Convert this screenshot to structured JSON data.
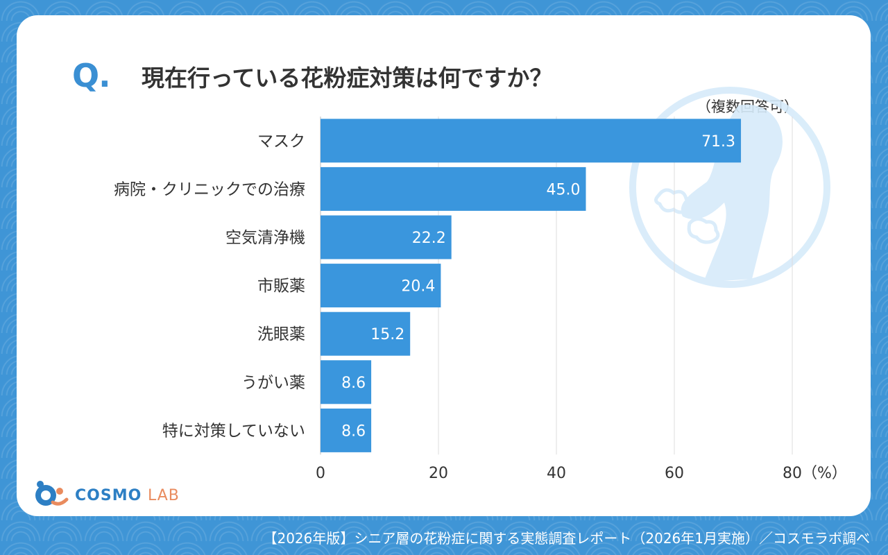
{
  "header": {
    "q_mark": "Q.",
    "title": "現在行っている花粉症対策は何ですか？",
    "note": "（複数回答可）"
  },
  "chart_data": {
    "type": "bar",
    "orientation": "horizontal",
    "categories": [
      "マスク",
      "病院・クリニックでの治療",
      "空気清浄機",
      "市販薬",
      "洗眼薬",
      "うがい薬",
      "特に対策していない"
    ],
    "values": [
      71.3,
      45.0,
      22.2,
      20.4,
      15.2,
      8.6,
      8.6
    ],
    "value_labels": [
      "71.3",
      "45.0",
      "22.2",
      "20.4",
      "15.2",
      "8.6",
      "8.6"
    ],
    "xlim": [
      0,
      80
    ],
    "xticks": [
      "0",
      "20",
      "40",
      "60",
      "80（%）"
    ],
    "grid": true,
    "bar_color": "#3a96dd"
  },
  "logo": {
    "brand": "COSMO",
    "suffix": "LAB"
  },
  "footer": {
    "source": "【2026年版】シニア層の花粉症に関する実態調査レポート（2026年1月実施）／コスモラボ調べ"
  }
}
